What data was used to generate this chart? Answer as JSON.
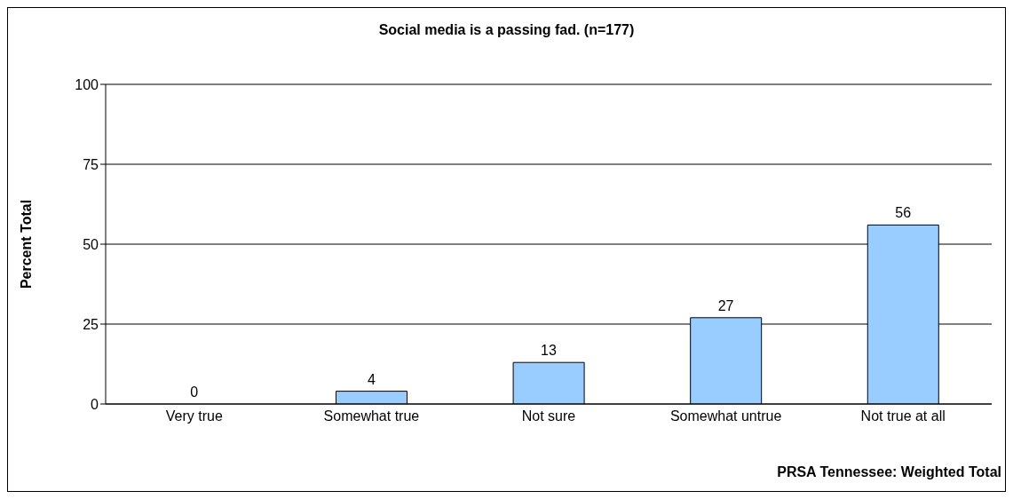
{
  "chart_data": {
    "type": "bar",
    "title": "Social media is a passing fad.  (n=177)",
    "ylabel": "Percent Total",
    "categories": [
      "Very true",
      "Somewhat true",
      "Not sure",
      "Somewhat untrue",
      "Not true at all"
    ],
    "values": [
      0,
      4,
      13,
      27,
      56
    ],
    "color": "#99ccff",
    "ylim": [
      0,
      100
    ],
    "yticks": [
      0,
      25,
      50,
      75,
      100
    ],
    "grid": "y",
    "data_labels": true,
    "annotations": [
      "PRSA Tennessee:  Weighted Total"
    ]
  }
}
